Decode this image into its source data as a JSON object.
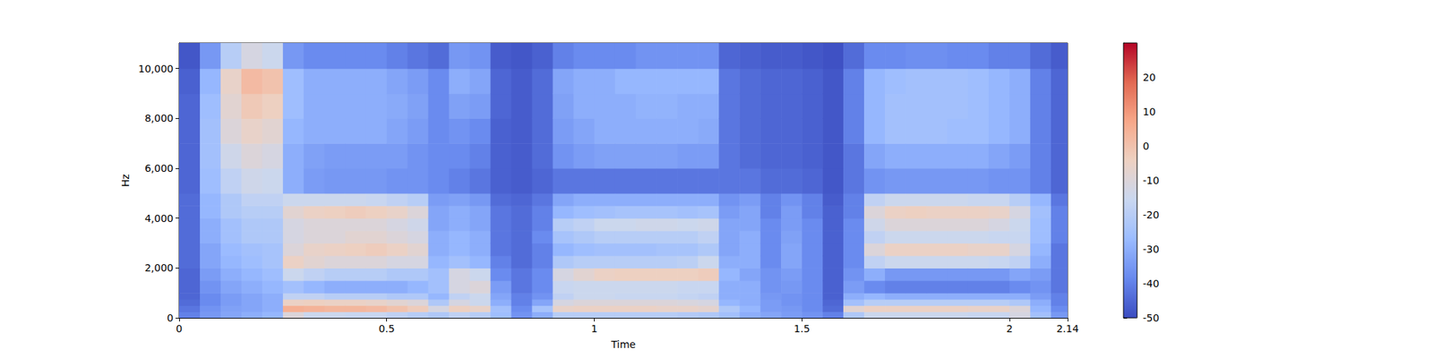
{
  "chart_data": {
    "type": "heatmap",
    "xlabel": "Time",
    "ylabel": "Hz",
    "xlim": [
      0,
      2.14
    ],
    "xticks": [
      0,
      0.5,
      1,
      1.5,
      2
    ],
    "ylim": [
      0,
      11025
    ],
    "yticks": [
      0,
      2000,
      4000,
      6000,
      8000,
      10000
    ],
    "time_bins": [
      0,
      0.05,
      0.1,
      0.15,
      0.2,
      0.25,
      0.3,
      0.35,
      0.4,
      0.45,
      0.5,
      0.55,
      0.6,
      0.65,
      0.7,
      0.75,
      0.8,
      0.85,
      0.9,
      0.95,
      1,
      1.05,
      1.1,
      1.15,
      1.2,
      1.25,
      1.3,
      1.35,
      1.4,
      1.45,
      1.5,
      1.55,
      1.6,
      1.65,
      1.7,
      1.75,
      1.8,
      1.85,
      1.9,
      1.95,
      2,
      2.05,
      2.1,
      2.15
    ],
    "freq_bins": [
      0,
      250,
      500,
      750,
      1000,
      1500,
      2000,
      2500,
      3000,
      3500,
      4000,
      4500,
      5000,
      6000,
      7000,
      8000,
      9000,
      10000,
      11025
    ],
    "cells": [
      [
        -40,
        -42,
        -44,
        -45,
        -45,
        -45,
        -44,
        -44,
        -44,
        -44,
        -44,
        -44,
        -45,
        -45,
        -45,
        -45,
        -46,
        -48
      ],
      [
        -35,
        -36,
        -38,
        -38,
        -36,
        -34,
        -32,
        -32,
        -30,
        -30,
        -28,
        -28,
        -26,
        -25,
        -25,
        -26,
        -28,
        -35
      ],
      [
        -32,
        -33,
        -34,
        -34,
        -32,
        -30,
        -28,
        -27,
        -25,
        -25,
        -22,
        -22,
        -18,
        -14,
        -10,
        -8,
        -6,
        -20
      ],
      [
        -30,
        -32,
        -32,
        -32,
        -30,
        -28,
        -26,
        -25,
        -22,
        -22,
        -20,
        -18,
        -14,
        -10,
        -6,
        -2,
        2,
        -12
      ],
      [
        -28,
        -30,
        -30,
        -30,
        -28,
        -26,
        -24,
        -24,
        -22,
        -22,
        -20,
        -18,
        -15,
        -12,
        -8,
        -4,
        0,
        -15
      ],
      [
        -10,
        5,
        -5,
        -18,
        -25,
        -15,
        -5,
        -10,
        -12,
        -12,
        -8,
        -15,
        -30,
        -30,
        -28,
        -26,
        -26,
        -35
      ],
      [
        -15,
        4,
        -4,
        -18,
        -28,
        -18,
        -8,
        -6,
        -10,
        -10,
        -5,
        -15,
        -34,
        -33,
        -30,
        -30,
        -30,
        -38
      ],
      [
        -15,
        3,
        -5,
        -20,
        -30,
        -20,
        -10,
        -5,
        -10,
        -10,
        -4,
        -15,
        -35,
        -34,
        -30,
        -30,
        -30,
        -38
      ],
      [
        -16,
        3,
        -5,
        -20,
        -30,
        -20,
        -10,
        -4,
        -8,
        -10,
        -3,
        -15,
        -35,
        -34,
        -30,
        -30,
        -30,
        -38
      ],
      [
        -16,
        2,
        -6,
        -20,
        -30,
        -20,
        -10,
        -3,
        -8,
        -10,
        -4,
        -16,
        -35,
        -34,
        -30,
        -30,
        -30,
        -38
      ],
      [
        -18,
        0,
        -8,
        -22,
        -30,
        -22,
        -12,
        -5,
        -10,
        -12,
        -6,
        -18,
        -36,
        -34,
        -32,
        -31,
        -32,
        -40
      ],
      [
        -20,
        -3,
        -10,
        -22,
        -28,
        -22,
        -12,
        -8,
        -12,
        -14,
        -10,
        -20,
        -36,
        -36,
        -34,
        -33,
        -34,
        -42
      ],
      [
        -22,
        -12,
        -22,
        -28,
        -25,
        -25,
        -28,
        -30,
        -30,
        -32,
        -32,
        -34,
        -38,
        -38,
        -38,
        -38,
        -38,
        -44
      ],
      [
        -18,
        -4,
        -12,
        -18,
        -12,
        -12,
        -25,
        -28,
        -28,
        -30,
        -30,
        -33,
        -40,
        -38,
        -36,
        -33,
        -30,
        -35
      ],
      [
        -20,
        -6,
        -15,
        -15,
        -10,
        -15,
        -28,
        -30,
        -30,
        -32,
        -32,
        -35,
        -42,
        -40,
        -38,
        -34,
        -32,
        -36
      ],
      [
        -26,
        -25,
        -30,
        -32,
        -34,
        -38,
        -40,
        -42,
        -42,
        -42,
        -42,
        -44,
        -46,
        -46,
        -46,
        -45,
        -45,
        -47
      ],
      [
        -36,
        -38,
        -40,
        -40,
        -42,
        -42,
        -44,
        -44,
        -44,
        -44,
        -44,
        -45,
        -47,
        -47,
        -47,
        -47,
        -47,
        -48
      ],
      [
        -30,
        -24,
        -32,
        -36,
        -38,
        -38,
        -40,
        -40,
        -38,
        -40,
        -40,
        -42,
        -45,
        -44,
        -44,
        -44,
        -44,
        -46
      ],
      [
        -20,
        -6,
        -12,
        -18,
        -16,
        -12,
        -22,
        -28,
        -24,
        -20,
        -28,
        -32,
        -42,
        -36,
        -34,
        -33,
        -32,
        -40
      ],
      [
        -20,
        -5,
        -10,
        -15,
        -15,
        -8,
        -20,
        -26,
        -22,
        -18,
        -26,
        -30,
        -42,
        -34,
        -32,
        -30,
        -30,
        -38
      ],
      [
        -20,
        -5,
        -10,
        -15,
        -15,
        -5,
        -20,
        -25,
        -20,
        -15,
        -25,
        -30,
        -42,
        -33,
        -30,
        -30,
        -30,
        -38
      ],
      [
        -20,
        -5,
        -10,
        -16,
        -15,
        -4,
        -20,
        -25,
        -20,
        -15,
        -24,
        -30,
        -42,
        -33,
        -30,
        -30,
        -28,
        -38
      ],
      [
        -20,
        -5,
        -10,
        -16,
        -15,
        -4,
        -20,
        -25,
        -20,
        -14,
        -24,
        -30,
        -42,
        -33,
        -30,
        -29,
        -28,
        -36
      ],
      [
        -20,
        -6,
        -10,
        -16,
        -15,
        -4,
        -20,
        -24,
        -20,
        -14,
        -24,
        -30,
        -42,
        -33,
        -30,
        -29,
        -28,
        -36
      ],
      [
        -21,
        -6,
        -11,
        -17,
        -16,
        -4,
        -19,
        -24,
        -20,
        -15,
        -25,
        -30,
        -42,
        -34,
        -30,
        -30,
        -28,
        -36
      ],
      [
        -22,
        -7,
        -12,
        -18,
        -16,
        -3,
        -15,
        -22,
        -18,
        -14,
        -24,
        -30,
        -42,
        -34,
        -31,
        -30,
        -28,
        -36
      ],
      [
        -25,
        -22,
        -28,
        -30,
        -30,
        -28,
        -30,
        -32,
        -32,
        -32,
        -34,
        -36,
        -42,
        -42,
        -42,
        -42,
        -42,
        -45
      ],
      [
        -30,
        -28,
        -30,
        -30,
        -30,
        -32,
        -30,
        -30,
        -30,
        -32,
        -32,
        -34,
        -42,
        -44,
        -44,
        -44,
        -44,
        -46
      ],
      [
        -32,
        -34,
        -34,
        -35,
        -36,
        -36,
        -38,
        -38,
        -38,
        -38,
        -40,
        -40,
        -44,
        -45,
        -45,
        -45,
        -45,
        -47
      ],
      [
        -34,
        -35,
        -36,
        -36,
        -35,
        -34,
        -32,
        -32,
        -33,
        -34,
        -34,
        -36,
        -44,
        -45,
        -45,
        -45,
        -45,
        -47
      ],
      [
        -36,
        -38,
        -38,
        -38,
        -38,
        -38,
        -38,
        -38,
        -38,
        -38,
        -40,
        -40,
        -45,
        -46,
        -46,
        -46,
        -46,
        -48
      ],
      [
        -40,
        -44,
        -45,
        -46,
        -46,
        -46,
        -46,
        -46,
        -46,
        -46,
        -46,
        -47,
        -48,
        -48,
        -48,
        -48,
        -48,
        -49
      ],
      [
        -22,
        -8,
        -25,
        -30,
        -34,
        -36,
        -38,
        -38,
        -38,
        -38,
        -40,
        -40,
        -42,
        -42,
        -40,
        -40,
        -40,
        -44
      ],
      [
        -15,
        -5,
        -20,
        -28,
        -38,
        -30,
        -18,
        -10,
        -18,
        -14,
        -10,
        -18,
        -36,
        -32,
        -28,
        -28,
        -28,
        -38
      ],
      [
        -15,
        -5,
        -20,
        -30,
        -40,
        -35,
        -15,
        -5,
        -15,
        -10,
        -5,
        -15,
        -35,
        -30,
        -25,
        -25,
        -26,
        -38
      ],
      [
        -15,
        -5,
        -20,
        -30,
        -40,
        -35,
        -15,
        -5,
        -15,
        -10,
        -4,
        -15,
        -35,
        -30,
        -25,
        -25,
        -25,
        -37
      ],
      [
        -15,
        -5,
        -20,
        -30,
        -40,
        -35,
        -15,
        -5,
        -15,
        -10,
        -5,
        -15,
        -35,
        -30,
        -25,
        -25,
        -25,
        -37
      ],
      [
        -15,
        -5,
        -20,
        -30,
        -40,
        -35,
        -15,
        -5,
        -15,
        -10,
        -5,
        -15,
        -35,
        -30,
        -26,
        -25,
        -25,
        -38
      ],
      [
        -16,
        -6,
        -20,
        -30,
        -40,
        -35,
        -15,
        -6,
        -15,
        -10,
        -5,
        -16,
        -35,
        -30,
        -26,
        -26,
        -26,
        -38
      ],
      [
        -16,
        -6,
        -20,
        -30,
        -40,
        -35,
        -16,
        -6,
        -16,
        -12,
        -6,
        -16,
        -36,
        -32,
        -28,
        -28,
        -28,
        -40
      ],
      [
        -12,
        -10,
        -22,
        -30,
        -38,
        -32,
        -18,
        -12,
        -16,
        -15,
        -12,
        -20,
        -36,
        -34,
        -30,
        -30,
        -30,
        -40
      ],
      [
        -25,
        -28,
        -30,
        -34,
        -36,
        -34,
        -30,
        -28,
        -26,
        -26,
        -25,
        -28,
        -40,
        -40,
        -40,
        -40,
        -40,
        -44
      ],
      [
        -35,
        -38,
        -40,
        -40,
        -42,
        -42,
        -42,
        -42,
        -40,
        -40,
        -40,
        -42,
        -45,
        -45,
        -45,
        -45,
        -45,
        -47
      ]
    ],
    "colorbar_range": [
      -50,
      30
    ],
    "colorbar_ticks": [
      -50,
      -40,
      -30,
      -20,
      -10,
      0,
      10,
      20
    ]
  }
}
